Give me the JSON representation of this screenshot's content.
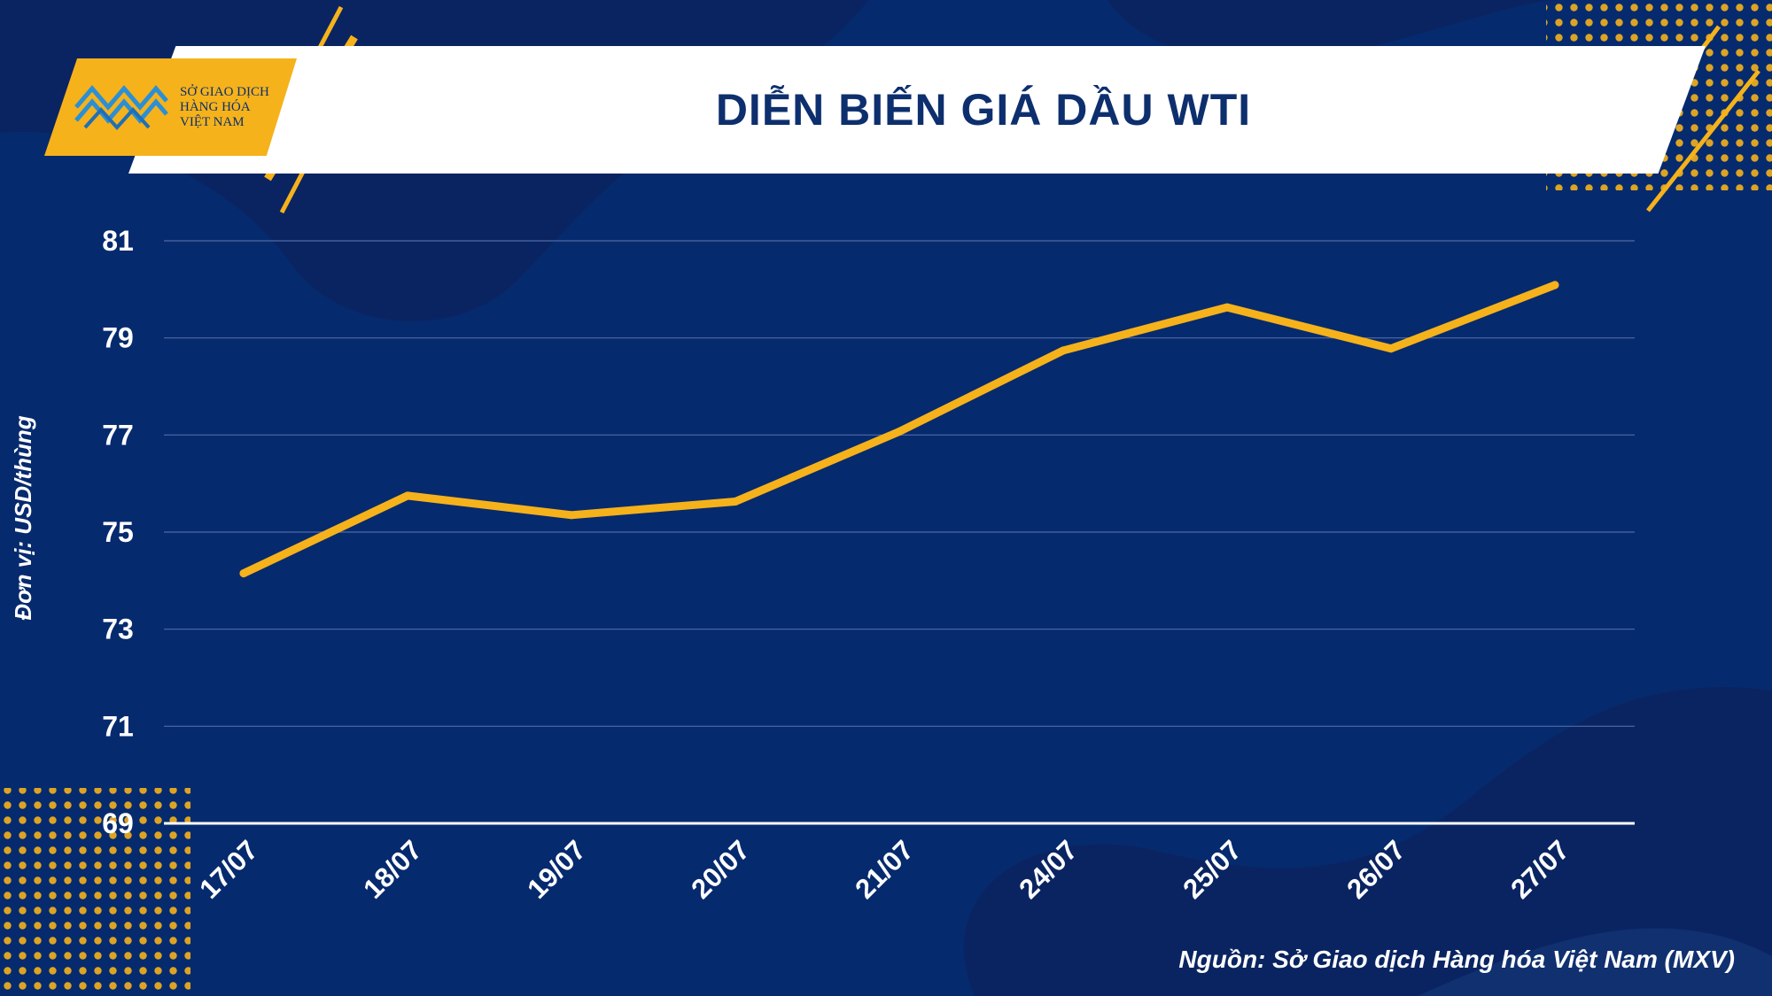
{
  "header": {
    "title": "DIỄN BIẾN GIÁ DẦU WTI",
    "logo_lines": [
      "SỞ GIAO DỊCH",
      "HÀNG HÓA",
      "VIỆT NAM"
    ]
  },
  "source": "Nguồn: Sở Giao dịch Hàng hóa Việt Nam (MXV)",
  "colors": {
    "background": "#062a6e",
    "line": "#f5b21b",
    "accent": "#f5b21b",
    "title_text": "#0d2f6e",
    "grid": "#4f6aa8",
    "axis_text": "#ffffff"
  },
  "chart_data": {
    "type": "line",
    "title": "DIỄN BIẾN GIÁ DẦU WTI",
    "xlabel": "",
    "ylabel": "Đơn vị: USD/thùng",
    "categories": [
      "17/07",
      "18/07",
      "19/07",
      "20/07",
      "21/07",
      "24/07",
      "25/07",
      "26/07",
      "27/07"
    ],
    "series": [
      {
        "values": [
          74.15,
          75.75,
          75.35,
          75.63,
          77.07,
          78.74,
          79.63,
          78.78,
          80.09
        ]
      }
    ],
    "ylim": [
      69,
      81
    ],
    "yticks": [
      81,
      79,
      77,
      75,
      73,
      71,
      69
    ],
    "grid": true,
    "legend": "none"
  }
}
